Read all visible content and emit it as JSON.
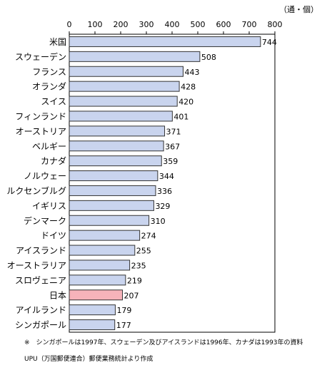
{
  "chart_data": {
    "type": "bar",
    "orientation": "horizontal",
    "unit_label": "（通・個）",
    "categories": [
      "米国",
      "スウェーデン",
      "フランス",
      "オランダ",
      "スイス",
      "フィンランド",
      "オーストリア",
      "ベルギー",
      "カナダ",
      "ノルウェー",
      "ルクセンブルグ",
      "イギリス",
      "デンマーク",
      "ドイツ",
      "アイスランド",
      "オーストラリア",
      "スロヴェニア",
      "日本",
      "アイルランド",
      "シンガポール"
    ],
    "values": [
      744,
      508,
      443,
      428,
      420,
      401,
      371,
      367,
      359,
      344,
      336,
      329,
      310,
      274,
      255,
      235,
      219,
      207,
      179,
      177
    ],
    "highlight_index": 17,
    "xlim": [
      0,
      800
    ],
    "x_ticks": [
      0,
      100,
      200,
      300,
      400,
      500,
      600,
      700,
      800
    ],
    "grid": false,
    "legend": "none",
    "colors": {
      "bar": "#c9d4ee",
      "bar_highlight": "#f6b3ba",
      "bar_border": "#333333"
    }
  },
  "notes": [
    "※　シンガポールは1997年、スウェーデン及びアイスランドは1996年、カナダは1993年の資料",
    "UPU（万国郵便連合）郵便業務統計より作成"
  ]
}
